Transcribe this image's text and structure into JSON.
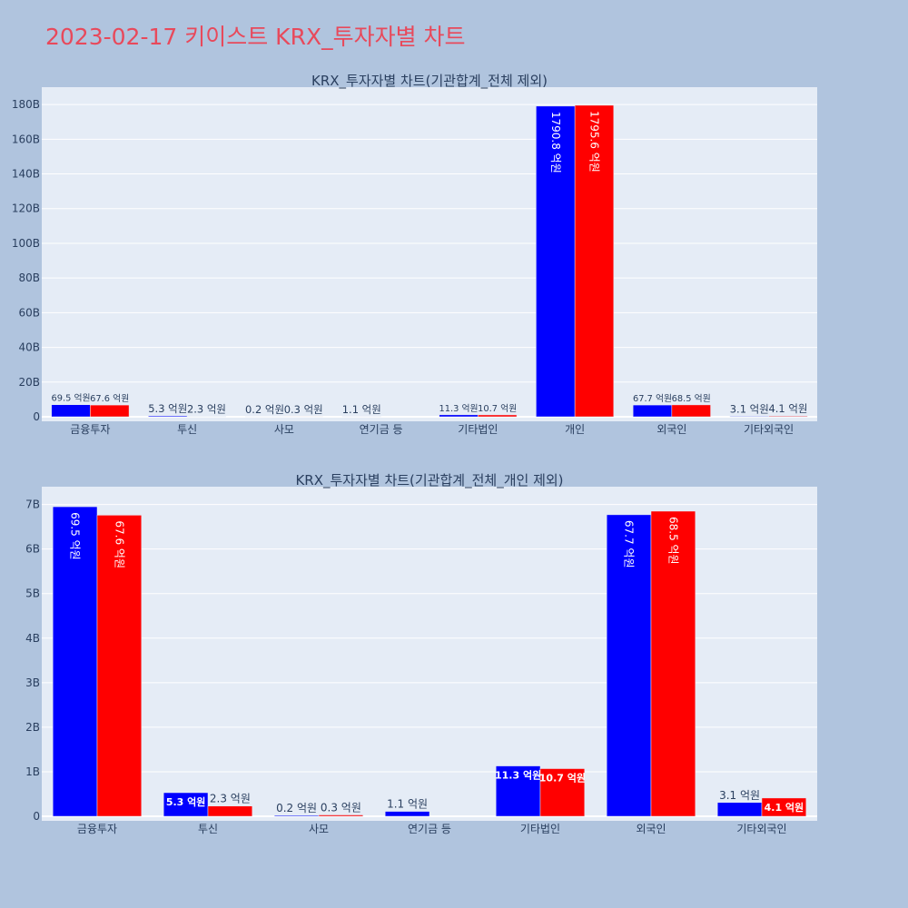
{
  "page": {
    "title": "2023-02-17 키이스트 KRX_투자자별 차트",
    "title_color": "#e8495b",
    "background": "#b0c4de",
    "plot_background": "#e5ecf6"
  },
  "chart_data": [
    {
      "type": "bar",
      "title": "KRX_투자자별 차트(기관합계_전체 제외)",
      "categories": [
        "금융투자",
        "투신",
        "사모",
        "연기금 등",
        "기타법인",
        "개인",
        "외국인",
        "기타외국인"
      ],
      "series": [
        {
          "color": "#0000ff",
          "values": [
            6950000000,
            530000000,
            20000000,
            110000000,
            1130000000,
            179080000000,
            6770000000,
            310000000
          ],
          "labels": [
            "69.5 억원",
            "5.3 억원",
            "0.2 억원",
            "1.1 억원",
            "11.3 억원",
            "1790.8 억원",
            "67.7 억원",
            "3.1 억원"
          ]
        },
        {
          "color": "#ff0000",
          "values": [
            6760000000,
            230000000,
            30000000,
            null,
            1070000000,
            179560000000,
            6850000000,
            410000000
          ],
          "labels": [
            "67.6 억원",
            "2.3 억원",
            "0.3 억원",
            "",
            "10.7 억원",
            "1795.6 억원",
            "68.5 억원",
            "4.1 억원"
          ]
        }
      ],
      "ylim": [
        0,
        190000000000
      ],
      "yticks": [
        0,
        20000000000,
        40000000000,
        60000000000,
        80000000000,
        100000000000,
        120000000000,
        140000000000,
        160000000000,
        180000000000
      ],
      "ytick_labels": [
        "0",
        "20B",
        "40B",
        "60B",
        "80B",
        "100B",
        "120B",
        "140B",
        "160B",
        "180B"
      ],
      "grid": true
    },
    {
      "type": "bar",
      "title": "KRX_투자자별 차트(기관합계_전체_개인 제외)",
      "categories": [
        "금융투자",
        "투신",
        "사모",
        "연기금 등",
        "기타법인",
        "외국인",
        "기타외국인"
      ],
      "series": [
        {
          "color": "#0000ff",
          "values": [
            6950000000,
            530000000,
            20000000,
            110000000,
            1130000000,
            6770000000,
            310000000
          ],
          "labels": [
            "69.5 억원",
            "5.3 억원",
            "0.2 억원",
            "1.1 억원",
            "11.3 억원",
            "67.7 억원",
            "3.1 억원"
          ]
        },
        {
          "color": "#ff0000",
          "values": [
            6760000000,
            230000000,
            30000000,
            null,
            1070000000,
            6850000000,
            410000000
          ],
          "labels": [
            "67.6 억원",
            "2.3 억원",
            "0.3 억원",
            "",
            "10.7 억원",
            "68.5 억원",
            "4.1 억원"
          ]
        }
      ],
      "ylim": [
        0,
        7400000000
      ],
      "yticks": [
        0,
        1000000000,
        2000000000,
        3000000000,
        4000000000,
        5000000000,
        6000000000,
        7000000000
      ],
      "ytick_labels": [
        "0",
        "1B",
        "2B",
        "3B",
        "4B",
        "5B",
        "6B",
        "7B"
      ],
      "grid": true
    }
  ]
}
